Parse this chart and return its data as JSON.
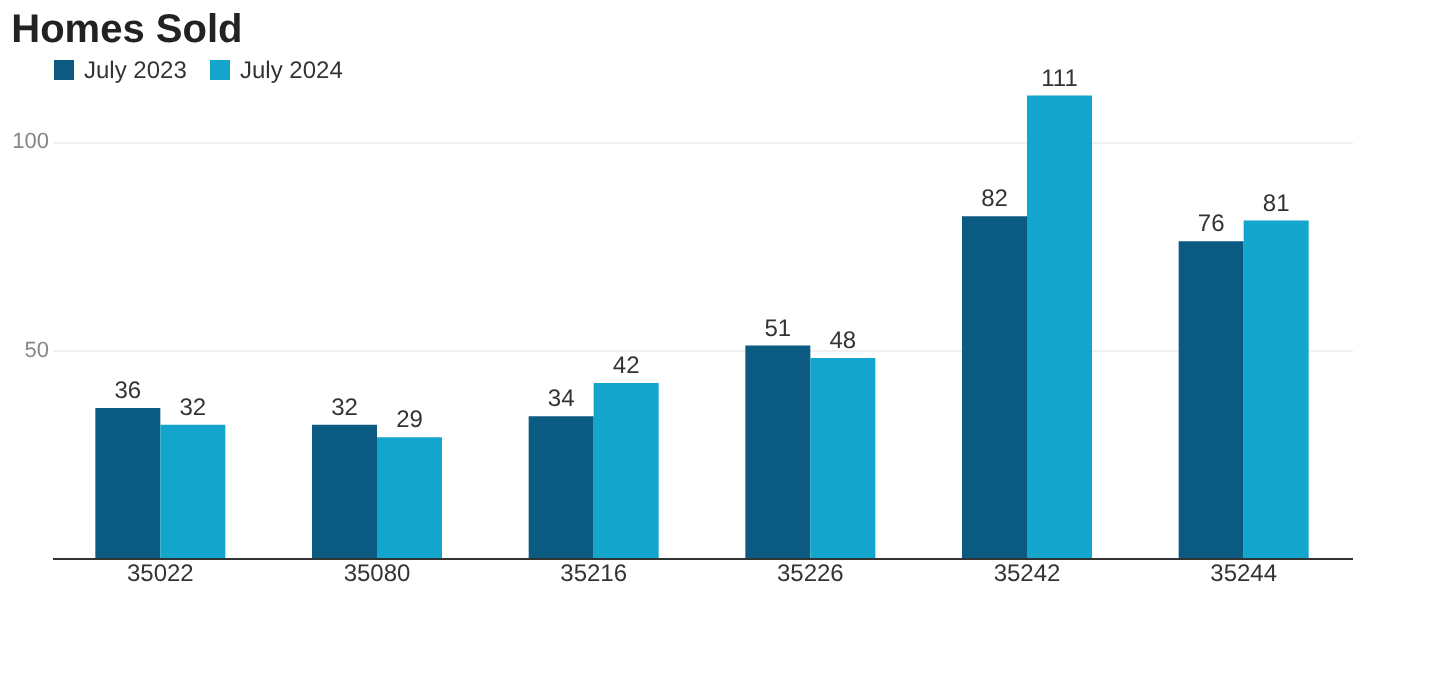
{
  "chart_data": {
    "type": "bar",
    "title": "Homes Sold",
    "categories": [
      "35022",
      "35080",
      "35216",
      "35226",
      "35242",
      "35244"
    ],
    "series": [
      {
        "name": "July 2023",
        "color": "#0b5a82",
        "values": [
          36,
          32,
          34,
          51,
          82,
          76
        ]
      },
      {
        "name": "July 2024",
        "color": "#14a5cc",
        "values": [
          32,
          29,
          42,
          48,
          111,
          81
        ]
      }
    ],
    "ylim": [
      0,
      120
    ],
    "yticks": [
      50,
      100
    ],
    "grid": "y",
    "legend": "top left",
    "data_labels": true
  }
}
